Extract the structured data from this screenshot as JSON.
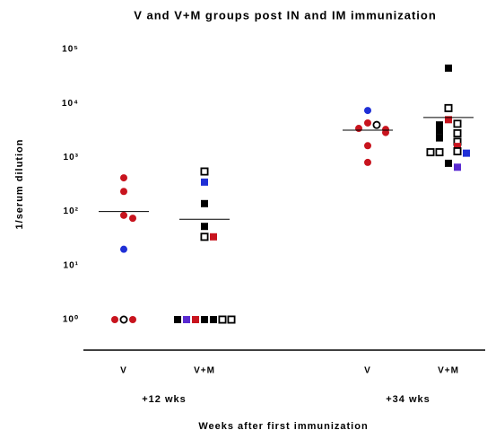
{
  "chart_data": {
    "type": "dot",
    "title": "V and V+M groups post IN and IM immunization",
    "y_label": "1/serum dilution",
    "x_label": "Weeks after first immunization",
    "y_scale": "log",
    "ylim": [
      1,
      100000
    ],
    "yticks": [
      {
        "value": 1,
        "label": "10⁰"
      },
      {
        "value": 10,
        "label": "10¹"
      },
      {
        "value": 100,
        "label": "10²"
      },
      {
        "value": 1000,
        "label": "10³"
      },
      {
        "value": 10000,
        "label": "10⁴"
      },
      {
        "value": 100000,
        "label": "10⁵"
      }
    ],
    "group_labels": [
      "+12 wks",
      "+34 wks"
    ],
    "groups": [
      {
        "name": "V",
        "median": 100,
        "values": [
          420,
          235,
          85,
          75,
          20,
          1,
          1,
          1
        ],
        "colors": [
          "#c8141e",
          "#c8141e",
          "#c8141e",
          "#c8141e",
          "#1f2fd6",
          "#000000",
          "#c8141e",
          "#c8141e"
        ],
        "markers": [
          "circle",
          "circle",
          "circle",
          "circle",
          "circle",
          "open-circle",
          "circle",
          "circle"
        ]
      },
      {
        "name": "V+M",
        "median": 72,
        "values": [
          550,
          350,
          140,
          53,
          34,
          34,
          1,
          1,
          1,
          1,
          1,
          1,
          1
        ],
        "colors": [
          "#000000",
          "#1f2fd6",
          "#000000",
          "#000000",
          "#000000",
          "#c8141e",
          "#000000",
          "#000000",
          "#c8141e",
          "#000000",
          "#5a2bd1",
          "#000000",
          "#000000"
        ],
        "markers": [
          "open-square",
          "square",
          "square",
          "square",
          "open-square",
          "square",
          "square",
          "square",
          "square",
          "open-square",
          "square",
          "open-square",
          "square"
        ]
      },
      {
        "name": "V",
        "median": 3200,
        "values": [
          7400,
          4350,
          4000,
          3450,
          3300,
          2900,
          1650,
          810
        ],
        "colors": [
          "#1f2fd6",
          "#c8141e",
          "#000000",
          "#c8141e",
          "#c8141e",
          "#c8141e",
          "#c8141e",
          "#c8141e"
        ],
        "markers": [
          "circle",
          "circle",
          "open-circle",
          "circle",
          "circle",
          "circle",
          "circle",
          "circle"
        ]
      },
      {
        "name": "V+M",
        "median": 5500,
        "values": [
          45000,
          8200,
          5000,
          4200,
          4000,
          3100,
          2800,
          2300,
          1950,
          1600,
          1300,
          1250,
          1200,
          1250,
          780,
          660
        ],
        "colors": [
          "#000000",
          "#000000",
          "#c8141e",
          "#000000",
          "#000000",
          "#000000",
          "#000000",
          "#000000",
          "#000000",
          "#c8141e",
          "#000000",
          "#000000",
          "#1f2fd6",
          "#000000",
          "#000000",
          "#5a2bd1"
        ],
        "markers": [
          "square",
          "open-square",
          "square",
          "open-square",
          "square",
          "square",
          "open-square",
          "square",
          "open-square",
          "square",
          "open-square",
          "open-square",
          "square",
          "open-square",
          "square",
          "square"
        ]
      }
    ]
  }
}
